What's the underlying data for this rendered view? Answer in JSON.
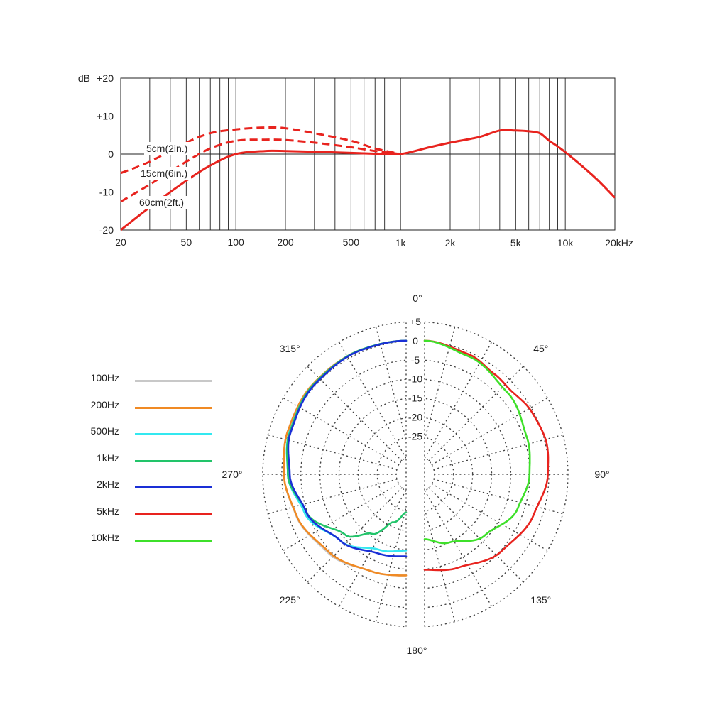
{
  "chart_data": [
    {
      "type": "line",
      "title": "",
      "x_scale": "log",
      "xlim": [
        20,
        20000
      ],
      "ylim": [
        -20,
        20
      ],
      "ylabel": "dB",
      "x_ticks": [
        {
          "value": 20,
          "label": "20"
        },
        {
          "value": 50,
          "label": "50"
        },
        {
          "value": 100,
          "label": "100"
        },
        {
          "value": 200,
          "label": "200"
        },
        {
          "value": 500,
          "label": "500"
        },
        {
          "value": 1000,
          "label": "1k"
        },
        {
          "value": 2000,
          "label": "2k"
        },
        {
          "value": 5000,
          "label": "5k"
        },
        {
          "value": 10000,
          "label": "10k"
        },
        {
          "value": 20000,
          "label": "20kHz"
        }
      ],
      "y_ticks": [
        {
          "value": 20,
          "label": "+20"
        },
        {
          "value": 10,
          "label": "+10"
        },
        {
          "value": 0,
          "label": "0"
        },
        {
          "value": -10,
          "label": "-10"
        },
        {
          "value": -20,
          "label": "-20"
        }
      ],
      "grid": true,
      "color": "#e8231e",
      "main_curve": {
        "x": [
          20,
          30,
          50,
          70,
          100,
          150,
          200,
          300,
          500,
          700,
          1000,
          1500,
          2000,
          3000,
          4000,
          5000,
          6000,
          7000,
          8000,
          10000,
          15000,
          20000
        ],
        "y": [
          -20,
          -14,
          -7,
          -3,
          0,
          0.8,
          0.8,
          0.6,
          0.3,
          0.1,
          0,
          1.8,
          3,
          4.5,
          6.2,
          6.2,
          6,
          5.5,
          3.5,
          0.5,
          -6,
          -11.5
        ]
      },
      "series": [
        {
          "name": "5cm(2in.)",
          "style": "dashed",
          "x": [
            20,
            30,
            50,
            70,
            100,
            150,
            200,
            300,
            500,
            700,
            1000
          ],
          "y": [
            -5,
            -2,
            3,
            5.5,
            6.5,
            7,
            6.8,
            5.5,
            3.5,
            1.5,
            0
          ]
        },
        {
          "name": "15cm(6in.)",
          "style": "dashed",
          "x": [
            20,
            30,
            50,
            70,
            100,
            150,
            200,
            300,
            500,
            700,
            1000
          ],
          "y": [
            -12.5,
            -8,
            -2,
            1.5,
            3.5,
            3.8,
            3.7,
            3,
            1.8,
            0.8,
            0
          ]
        },
        {
          "name": "60cm(2ft.)",
          "style": "solid",
          "x": [
            20,
            30,
            50
          ],
          "y": [
            -20,
            -14,
            -7
          ]
        }
      ]
    },
    {
      "type": "polar",
      "title": "",
      "angle_labels": [
        {
          "value": 0,
          "label": "0°"
        },
        {
          "value": 45,
          "label": "45°"
        },
        {
          "value": 90,
          "label": "90°"
        },
        {
          "value": 135,
          "label": "135°"
        },
        {
          "value": 180,
          "label": "180°"
        },
        {
          "value": 225,
          "label": "225°"
        },
        {
          "value": 270,
          "label": "270°"
        },
        {
          "value": 315,
          "label": "315°"
        }
      ],
      "radial_ticks": [
        {
          "value": 5,
          "label": "+5"
        },
        {
          "value": 0,
          "label": "0"
        },
        {
          "value": -5,
          "label": "-5"
        },
        {
          "value": -10,
          "label": "-10"
        },
        {
          "value": -15,
          "label": "-15"
        },
        {
          "value": -20,
          "label": "-20"
        },
        {
          "value": -25,
          "label": "-25"
        }
      ],
      "rlim": [
        -35,
        5
      ],
      "grid": "dotted",
      "series": [
        {
          "name": "100Hz",
          "color": "#c8c8c8",
          "side": "left",
          "angles": [
            0,
            20,
            45,
            70,
            90,
            110,
            135,
            160,
            180
          ],
          "db": [
            0,
            -0.3,
            -1,
            -2,
            -3,
            -4.2,
            -6,
            -8,
            -8.5
          ]
        },
        {
          "name": "200Hz",
          "color": "#f08a24",
          "side": "left",
          "angles": [
            0,
            20,
            45,
            70,
            90,
            110,
            135,
            160,
            180
          ],
          "db": [
            0,
            -0.3,
            -1,
            -2,
            -3,
            -4.3,
            -6.3,
            -8,
            -8.5
          ]
        },
        {
          "name": "500Hz",
          "color": "#33e8f0",
          "side": "left",
          "angles": [
            0,
            20,
            45,
            70,
            90,
            110,
            135,
            160,
            180
          ],
          "db": [
            0,
            -0.3,
            -1.2,
            -2.5,
            -4,
            -6.5,
            -10.5,
            -14,
            -15
          ]
        },
        {
          "name": "1kHz",
          "color": "#22c46a",
          "side": "left",
          "angles": [
            0,
            20,
            45,
            70,
            90,
            110,
            135,
            150,
            165,
            180
          ],
          "db": [
            0,
            -0.3,
            -1.2,
            -2.6,
            -4,
            -7,
            -12.5,
            -17,
            -22,
            -25
          ]
        },
        {
          "name": "2kHz",
          "color": "#1a2fd6",
          "side": "left",
          "angles": [
            0,
            20,
            45,
            70,
            90,
            110,
            135,
            160,
            180
          ],
          "db": [
            0,
            -0.4,
            -1.4,
            -2.8,
            -4.5,
            -7,
            -10.5,
            -13,
            -13.5
          ]
        },
        {
          "name": "5kHz",
          "color": "#e8231e",
          "side": "right",
          "angles": [
            0,
            20,
            35,
            45,
            60,
            75,
            90,
            110,
            135,
            160,
            180
          ],
          "db": [
            0,
            -1.5,
            -3,
            -3.5,
            -2.5,
            -2,
            -2.7,
            -4.5,
            -6.5,
            -9,
            -10
          ]
        },
        {
          "name": "10kHz",
          "color": "#3ee02a",
          "side": "right",
          "angles": [
            0,
            20,
            45,
            70,
            90,
            110,
            135,
            160,
            180
          ],
          "db": [
            0,
            -2,
            -4.5,
            -6.5,
            -7.5,
            -9,
            -12.5,
            -16,
            -18
          ]
        }
      ]
    }
  ]
}
